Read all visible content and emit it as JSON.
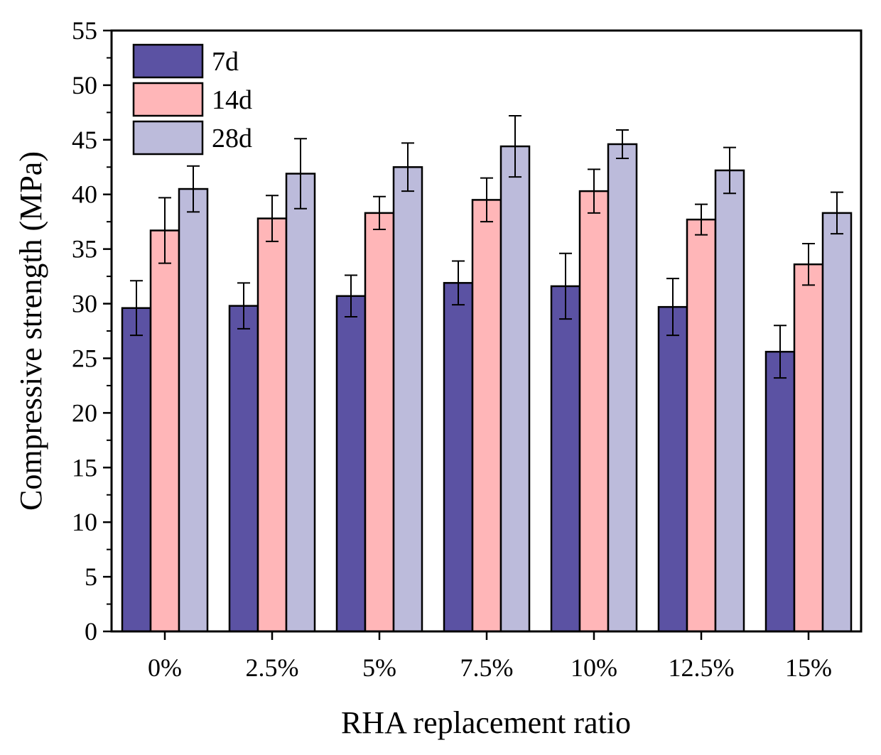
{
  "chart_data": {
    "type": "bar",
    "title": "",
    "xlabel": "RHA replacement ratio",
    "ylabel": "Compressive strength (MPa)",
    "ylim": [
      0,
      55
    ],
    "yticks": [
      0,
      5,
      10,
      15,
      20,
      25,
      30,
      35,
      40,
      45,
      50,
      55
    ],
    "ytick_labels": [
      "0",
      "5",
      "10",
      "15",
      "20",
      "25",
      "30",
      "35",
      "40",
      "45",
      "50",
      "55"
    ],
    "categories": [
      "0%",
      "2.5%",
      "5%",
      "7.5%",
      "10%",
      "12.5%",
      "15%"
    ],
    "grid": false,
    "legend_position": "top-left",
    "series": [
      {
        "name": "7d",
        "color": "#5b52a3",
        "values": [
          29.6,
          29.8,
          30.7,
          31.9,
          31.6,
          29.7,
          25.6
        ],
        "errors": [
          2.5,
          2.1,
          1.9,
          2.0,
          3.0,
          2.6,
          2.4
        ]
      },
      {
        "name": "14d",
        "color": "#ffb6b8",
        "values": [
          36.7,
          37.8,
          38.3,
          39.5,
          40.3,
          37.7,
          33.6
        ],
        "errors": [
          3.0,
          2.1,
          1.5,
          2.0,
          2.0,
          1.4,
          1.9
        ]
      },
      {
        "name": "28d",
        "color": "#bcbbdb",
        "values": [
          40.5,
          41.9,
          42.5,
          44.4,
          44.6,
          42.2,
          38.3
        ],
        "errors": [
          2.1,
          3.2,
          2.2,
          2.8,
          1.3,
          2.1,
          1.9
        ]
      }
    ]
  }
}
